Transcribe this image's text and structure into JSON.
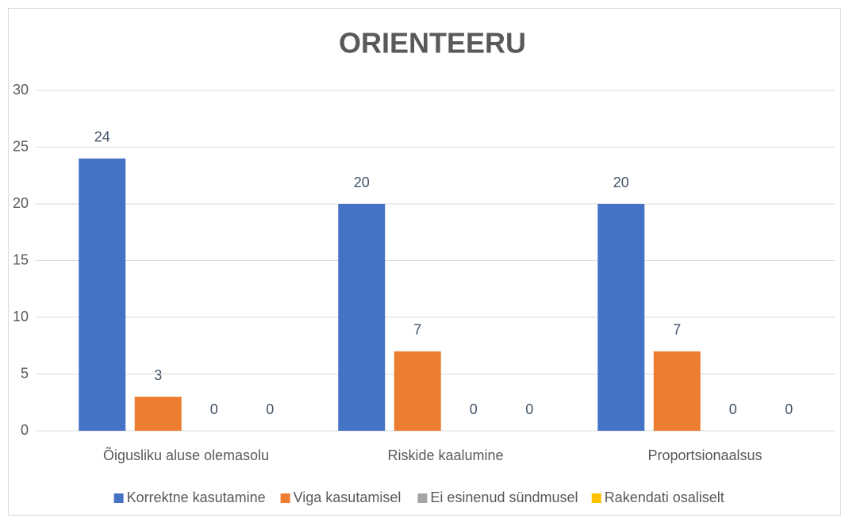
{
  "chart_data": {
    "type": "bar",
    "title": "ORIENTEERU",
    "categories": [
      "Õigusliku aluse olemasolu",
      "Riskide kaalumine",
      "Proportsionaalsus"
    ],
    "series": [
      {
        "name": "Korrektne kasutamine",
        "color": "#4472c4",
        "values": [
          24,
          20,
          20
        ]
      },
      {
        "name": "Viga kasutamisel",
        "color": "#ed7d31",
        "values": [
          3,
          7,
          7
        ]
      },
      {
        "name": "Ei esinenud sündmusel",
        "color": "#a5a5a5",
        "values": [
          0,
          0,
          0
        ]
      },
      {
        "name": "Rakendati osaliselt",
        "color": "#ffc000",
        "values": [
          0,
          0,
          0
        ]
      }
    ],
    "ylim": [
      0,
      30
    ],
    "yticks": [
      0,
      5,
      10,
      15,
      20,
      25,
      30
    ],
    "grid": true,
    "legend": "bottom"
  }
}
